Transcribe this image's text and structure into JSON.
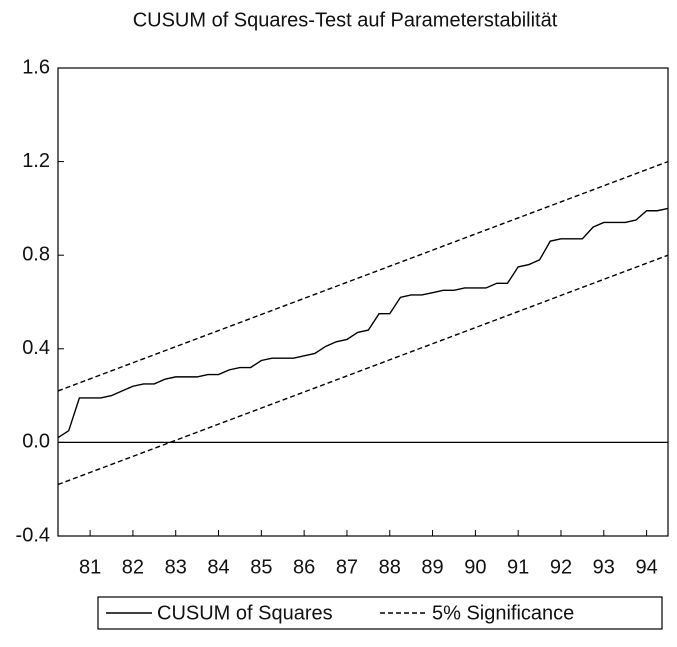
{
  "chart_data": {
    "type": "line",
    "title": "CUSUM of Squares-Test auf Parameterstabilität",
    "series": [
      {
        "name": "CUSUM of Squares",
        "color": "#000000",
        "style": "solid",
        "x": [
          80.25,
          80.5,
          80.75,
          81,
          81.25,
          81.5,
          81.75,
          82,
          82.25,
          82.5,
          82.75,
          83,
          83.25,
          83.5,
          83.75,
          84,
          84.25,
          84.5,
          84.75,
          85,
          85.25,
          85.5,
          85.75,
          86,
          86.25,
          86.5,
          86.75,
          87,
          87.25,
          87.5,
          87.75,
          88,
          88.25,
          88.5,
          88.75,
          89,
          89.25,
          89.5,
          89.75,
          90,
          90.25,
          90.5,
          90.75,
          91,
          91.25,
          91.5,
          91.75,
          92,
          92.25,
          92.5,
          92.75,
          93,
          93.25,
          93.5,
          93.75,
          94,
          94.25,
          94.5
        ],
        "values": [
          0.02,
          0.05,
          0.19,
          0.19,
          0.19,
          0.2,
          0.22,
          0.24,
          0.25,
          0.25,
          0.27,
          0.28,
          0.28,
          0.28,
          0.29,
          0.29,
          0.31,
          0.32,
          0.32,
          0.35,
          0.36,
          0.36,
          0.36,
          0.37,
          0.38,
          0.41,
          0.43,
          0.44,
          0.47,
          0.48,
          0.55,
          0.55,
          0.62,
          0.63,
          0.63,
          0.64,
          0.65,
          0.65,
          0.66,
          0.66,
          0.66,
          0.68,
          0.68,
          0.75,
          0.76,
          0.78,
          0.86,
          0.87,
          0.87,
          0.87,
          0.92,
          0.94,
          0.94,
          0.94,
          0.95,
          0.99,
          0.99,
          1.0
        ]
      },
      {
        "name": "5% Significance",
        "color": "#000000",
        "style": "dashed",
        "x": [
          80.25,
          94.5
        ],
        "upper": [
          0.22,
          1.2
        ],
        "lower": [
          -0.18,
          0.8
        ]
      }
    ],
    "hline": 0,
    "xlim": [
      80.25,
      94.5
    ],
    "xticks": [
      81,
      82,
      83,
      84,
      85,
      86,
      87,
      88,
      89,
      90,
      91,
      92,
      93,
      94
    ],
    "ylim": [
      -0.4,
      1.6
    ],
    "yticks": [
      {
        "value": -0.4,
        "label": "-0.4"
      },
      {
        "value": 0,
        "label": "0.0"
      },
      0.4,
      0.8,
      1.2,
      1.6
    ],
    "legend": "bottom"
  }
}
